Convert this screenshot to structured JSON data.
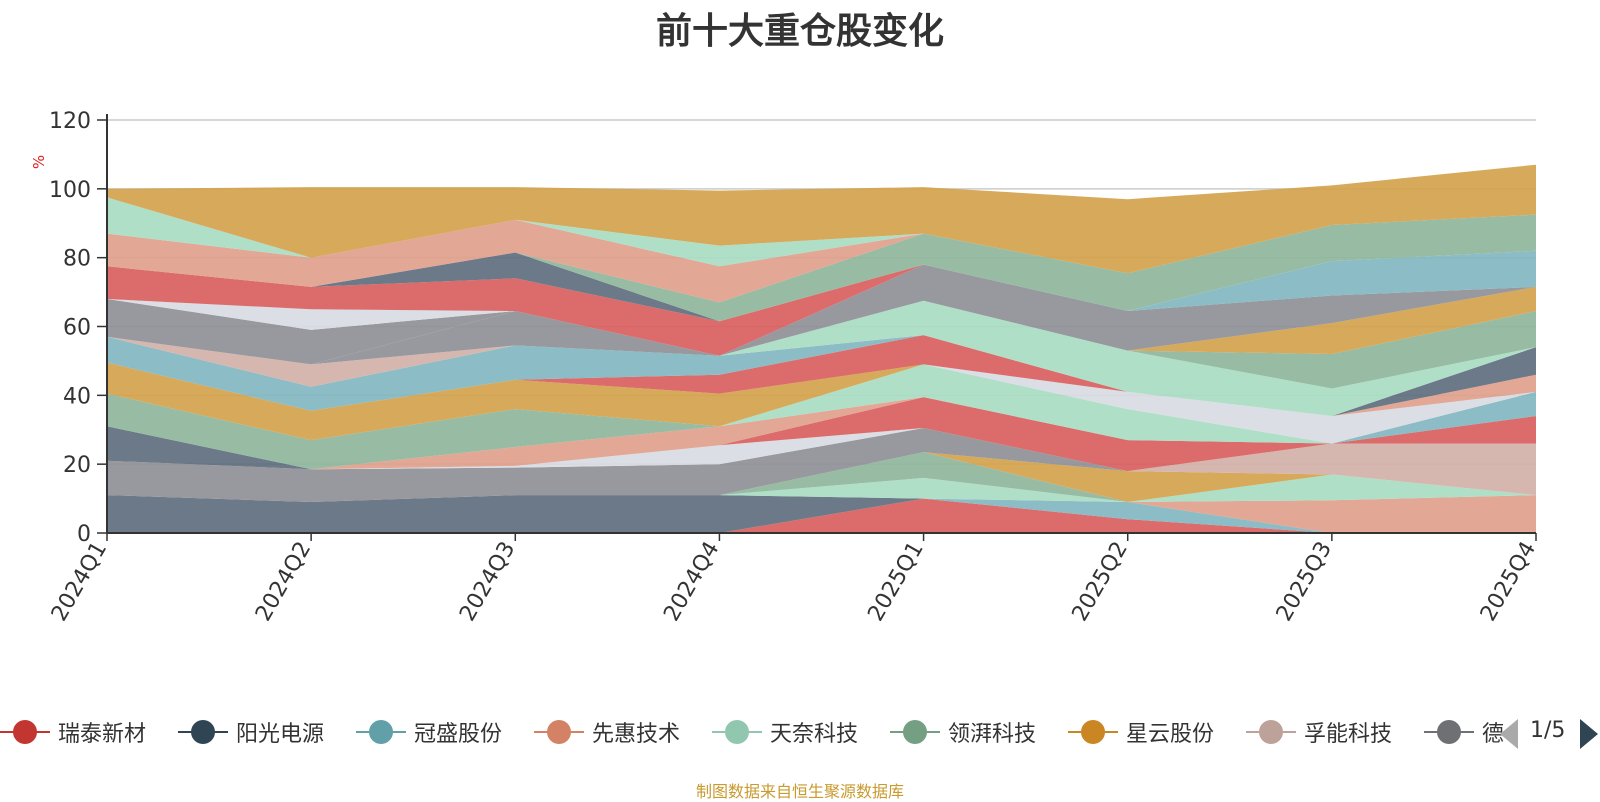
{
  "title": "前十大重仓股变化",
  "source_note": "制图数据来自恒生聚源数据库",
  "legend_page": "1/5",
  "chart_data": {
    "type": "area",
    "stacked": true,
    "ylabel": "%",
    "ylim": [
      0,
      120
    ],
    "yticks": [
      0,
      20,
      40,
      60,
      80,
      100,
      120
    ],
    "categories": [
      "2024Q1",
      "2024Q2",
      "2024Q3",
      "2024Q4",
      "2025Q1",
      "2025Q2",
      "2025Q3",
      "2025Q4"
    ],
    "series": [
      {
        "name": "瑞泰新材",
        "color": "#d9605e",
        "values": [
          0,
          0,
          0,
          0,
          10,
          4,
          0,
          0
        ]
      },
      {
        "name": "阳光电源",
        "color": "#5e6e7e",
        "values": [
          11,
          9,
          11,
          11,
          0,
          0,
          0,
          0
        ]
      },
      {
        "name": "冠盛股份",
        "color": "#82b6c0",
        "values": [
          0,
          0,
          0,
          0,
          0,
          5,
          0,
          0
        ]
      },
      {
        "name": "先惠技术",
        "color": "#e0a08c",
        "values": [
          0,
          0,
          0,
          0,
          0,
          0,
          9.5,
          11
        ]
      },
      {
        "name": "天奈科技",
        "color": "#a9dcc3",
        "values": [
          0,
          0,
          0,
          0,
          6,
          0,
          7.5,
          0
        ]
      },
      {
        "name": "领湃科技",
        "color": "#8fb69b",
        "values": [
          0,
          0,
          0,
          0,
          7.5,
          0,
          0,
          0
        ]
      },
      {
        "name": "星云股份",
        "color": "#d4a24c",
        "values": [
          0,
          0,
          0,
          0,
          0,
          9,
          0,
          0
        ]
      },
      {
        "name": "孚能科技",
        "color": "#d3b1a8",
        "values": [
          0,
          0,
          0,
          0,
          0,
          0,
          9,
          15
        ]
      },
      {
        "name": "",
        "color": "#8f9097",
        "values": [
          10,
          9.5,
          8,
          9,
          7,
          0,
          0,
          0
        ]
      },
      {
        "name": "",
        "color": "#d8dbe2",
        "values": [
          0,
          0,
          0.5,
          5.5,
          0,
          0,
          0,
          0
        ]
      },
      {
        "name": "",
        "color": "#d9605e",
        "values": [
          0,
          0,
          0,
          0,
          9,
          9,
          0,
          8
        ]
      },
      {
        "name": "",
        "color": "#5e6e7e",
        "values": [
          10,
          0,
          0,
          0,
          0,
          0,
          0,
          0
        ]
      },
      {
        "name": "",
        "color": "#e0a08c",
        "values": [
          0,
          0,
          5.5,
          5.5,
          0,
          0,
          0,
          0
        ]
      },
      {
        "name": "",
        "color": "#a9dcc3",
        "values": [
          0,
          0,
          0,
          0,
          9.5,
          9,
          0,
          0
        ]
      },
      {
        "name": "",
        "color": "#82b6c0",
        "values": [
          0,
          0,
          0,
          0,
          0,
          0,
          0,
          7
        ]
      },
      {
        "name": "",
        "color": "#8fb69b",
        "values": [
          9.5,
          8.5,
          11,
          0,
          0,
          0,
          0,
          0
        ]
      },
      {
        "name": "",
        "color": "#d4a24c",
        "values": [
          9,
          8.5,
          8.5,
          9.5,
          0,
          0,
          0,
          0
        ]
      },
      {
        "name": "",
        "color": "#d8dbe2",
        "values": [
          0,
          0,
          0,
          0,
          0,
          5,
          8,
          0
        ]
      },
      {
        "name": "",
        "color": "#d9605e",
        "values": [
          0,
          0,
          0,
          5.5,
          8.5,
          0,
          0,
          0
        ]
      },
      {
        "name": "",
        "color": "#82b6c0",
        "values": [
          7.5,
          7,
          10,
          5.5,
          0,
          0,
          0,
          0
        ]
      },
      {
        "name": "",
        "color": "#e0a08c",
        "values": [
          0,
          0,
          0,
          0,
          0,
          0,
          0,
          5
        ]
      },
      {
        "name": "",
        "color": "#5e6e7e",
        "values": [
          0,
          0,
          0,
          0,
          0,
          0,
          0,
          8
        ]
      },
      {
        "name": "",
        "color": "#d3b1a8",
        "values": [
          0,
          6.5,
          0,
          0,
          0,
          0,
          0,
          0
        ]
      },
      {
        "name": "",
        "color": "#8f9097",
        "values": [
          0,
          0,
          10,
          0,
          0,
          0,
          0,
          0
        ]
      },
      {
        "name": "",
        "color": "#a9dcc3",
        "values": [
          0,
          0,
          0,
          0,
          10,
          12,
          8,
          0
        ]
      },
      {
        "name": "",
        "color": "#8fb69b",
        "values": [
          0,
          0,
          0,
          0,
          0,
          0,
          10,
          10.5
        ]
      },
      {
        "name": "",
        "color": "#d4a24c",
        "values": [
          0,
          0,
          0,
          0,
          0,
          0,
          9,
          7
        ]
      },
      {
        "name": "",
        "color": "#8f9097",
        "values": [
          11,
          10,
          0,
          0,
          10.5,
          11.5,
          8,
          0
        ]
      },
      {
        "name": "",
        "color": "#d8dbe2",
        "values": [
          0,
          6,
          0,
          0,
          0,
          0,
          0,
          0
        ]
      },
      {
        "name": "",
        "color": "#d9605e",
        "values": [
          9.5,
          6.5,
          9.5,
          10,
          0,
          0,
          0,
          0
        ]
      },
      {
        "name": "",
        "color": "#5e6e7e",
        "values": [
          0,
          0,
          7.5,
          0,
          0,
          0,
          0,
          0
        ]
      },
      {
        "name": "",
        "color": "#82b6c0",
        "values": [
          0,
          0,
          0,
          0,
          0,
          0,
          10,
          10.5
        ]
      },
      {
        "name": "",
        "color": "#8fb69b",
        "values": [
          0,
          0,
          0,
          5.5,
          9,
          11,
          10.5,
          10.5
        ]
      },
      {
        "name": "",
        "color": "#e0a08c",
        "values": [
          9.5,
          8.5,
          9.5,
          10.5,
          0,
          0,
          0,
          0
        ]
      },
      {
        "name": "",
        "color": "#a9dcc3",
        "values": [
          10.5,
          0,
          0,
          6,
          0,
          0,
          0,
          0
        ]
      },
      {
        "name": "",
        "color": "#d4a24c",
        "values": [
          2.5,
          20.5,
          9.5,
          16,
          13.5,
          21.5,
          11.5,
          14.5
        ]
      }
    ]
  },
  "legend": [
    {
      "label": "瑞泰新材",
      "color": "#c23531"
    },
    {
      "label": "阳光电源",
      "color": "#2f4554"
    },
    {
      "label": "冠盛股份",
      "color": "#61a0a8"
    },
    {
      "label": "先惠技术",
      "color": "#d48265"
    },
    {
      "label": "天奈科技",
      "color": "#91c7ae"
    },
    {
      "label": "领湃科技",
      "color": "#749f83"
    },
    {
      "label": "星云股份",
      "color": "#ca8622"
    },
    {
      "label": "孚能科技",
      "color": "#bda29a"
    },
    {
      "label": "德",
      "color": "#6e7074"
    }
  ]
}
